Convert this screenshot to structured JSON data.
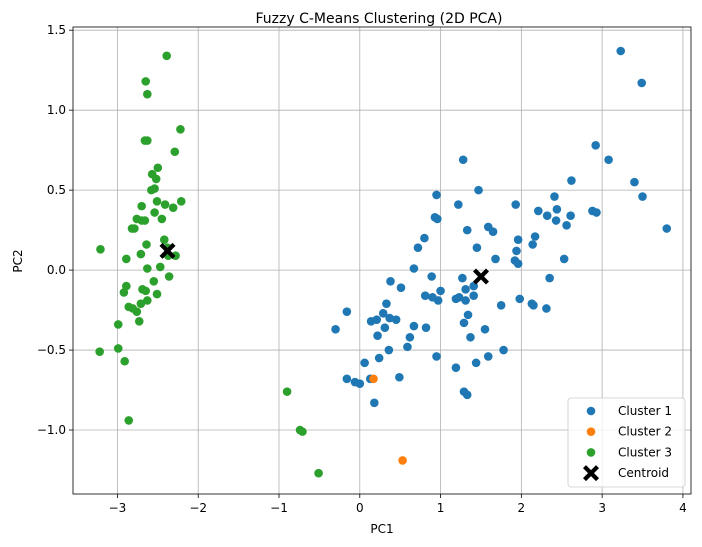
{
  "chart_data": {
    "type": "scatter",
    "title": "Fuzzy C-Means Clustering (2D PCA)",
    "xlabel": "PC1",
    "ylabel": "PC2",
    "xlim": [
      -3.55,
      4.1
    ],
    "ylim": [
      -1.4,
      1.52
    ],
    "x_ticks": [
      -3,
      -2,
      -1,
      0,
      1,
      2,
      3,
      4
    ],
    "x_tick_labels": [
      "−3",
      "−2",
      "−1",
      "0",
      "1",
      "2",
      "3",
      "4"
    ],
    "y_ticks": [
      -1.0,
      -0.5,
      0.0,
      0.5,
      1.0,
      1.5
    ],
    "y_tick_labels": [
      "−1.0",
      "−0.5",
      "0.0",
      "0.5",
      "1.0",
      "1.5"
    ],
    "grid": true,
    "legend_position": "bottom-right",
    "series": [
      {
        "name": "Cluster 1",
        "color": "#1f77b4",
        "marker": "circle",
        "points": [
          [
            3.23,
            1.37
          ],
          [
            3.49,
            1.17
          ],
          [
            3.8,
            0.26
          ],
          [
            3.5,
            0.46
          ],
          [
            3.4,
            0.55
          ],
          [
            3.08,
            0.69
          ],
          [
            2.92,
            0.78
          ],
          [
            2.62,
            0.56
          ],
          [
            2.88,
            0.37
          ],
          [
            2.93,
            0.36
          ],
          [
            2.61,
            0.34
          ],
          [
            2.56,
            0.28
          ],
          [
            2.43,
            0.31
          ],
          [
            2.44,
            0.38
          ],
          [
            2.41,
            0.46
          ],
          [
            2.32,
            0.34
          ],
          [
            2.21,
            0.37
          ],
          [
            2.17,
            0.21
          ],
          [
            2.14,
            0.16
          ],
          [
            2.53,
            0.07
          ],
          [
            2.35,
            -0.05
          ],
          [
            2.31,
            -0.24
          ],
          [
            2.15,
            -0.22
          ],
          [
            2.13,
            -0.21
          ],
          [
            1.98,
            -0.18
          ],
          [
            1.93,
            0.41
          ],
          [
            1.96,
            0.19
          ],
          [
            1.94,
            0.12
          ],
          [
            1.92,
            0.06
          ],
          [
            1.96,
            0.04
          ],
          [
            1.75,
            -0.22
          ],
          [
            1.78,
            -0.5
          ],
          [
            1.68,
            0.07
          ],
          [
            1.59,
            0.27
          ],
          [
            1.65,
            0.24
          ],
          [
            1.47,
            0.5
          ],
          [
            1.28,
            0.69
          ],
          [
            1.22,
            0.41
          ],
          [
            1.33,
            0.25
          ],
          [
            1.45,
            0.14
          ],
          [
            1.27,
            -0.05
          ],
          [
            1.41,
            -0.1
          ],
          [
            1.31,
            -0.12
          ],
          [
            1.23,
            -0.17
          ],
          [
            1.19,
            -0.18
          ],
          [
            1.31,
            -0.19
          ],
          [
            1.41,
            -0.16
          ],
          [
            1.34,
            -0.28
          ],
          [
            1.29,
            -0.33
          ],
          [
            1.55,
            -0.37
          ],
          [
            1.37,
            -0.42
          ],
          [
            1.59,
            -0.54
          ],
          [
            1.44,
            -0.58
          ],
          [
            1.19,
            -0.61
          ],
          [
            1.29,
            -0.76
          ],
          [
            1.33,
            -0.78
          ],
          [
            0.95,
            -0.54
          ],
          [
            0.82,
            -0.36
          ],
          [
            0.81,
            -0.16
          ],
          [
            0.89,
            -0.04
          ],
          [
            0.93,
            0.33
          ],
          [
            0.96,
            0.32
          ],
          [
            0.95,
            0.47
          ],
          [
            0.8,
            0.2
          ],
          [
            0.72,
            0.14
          ],
          [
            0.9,
            -0.17
          ],
          [
            1.0,
            -0.13
          ],
          [
            0.97,
            -0.19
          ],
          [
            0.67,
            0.01
          ],
          [
            0.51,
            -0.11
          ],
          [
            0.38,
            -0.07
          ],
          [
            0.33,
            -0.21
          ],
          [
            0.45,
            -0.31
          ],
          [
            0.37,
            -0.3
          ],
          [
            0.31,
            -0.36
          ],
          [
            0.29,
            -0.27
          ],
          [
            0.21,
            -0.31
          ],
          [
            0.14,
            -0.32
          ],
          [
            0.22,
            -0.41
          ],
          [
            0.24,
            -0.55
          ],
          [
            0.36,
            -0.5
          ],
          [
            0.59,
            -0.48
          ],
          [
            0.67,
            -0.35
          ],
          [
            0.62,
            -0.42
          ],
          [
            0.49,
            -0.67
          ],
          [
            0.18,
            -0.83
          ],
          [
            0.13,
            -0.68
          ],
          [
            0.06,
            -0.58
          ],
          [
            0.0,
            -0.71
          ],
          [
            -0.06,
            -0.7
          ],
          [
            -0.16,
            -0.68
          ],
          [
            -0.3,
            -0.37
          ],
          [
            -0.16,
            -0.26
          ]
        ]
      },
      {
        "name": "Cluster 2",
        "color": "#ff7f0e",
        "marker": "circle",
        "points": [
          [
            0.17,
            -0.68
          ],
          [
            0.53,
            -1.19
          ]
        ]
      },
      {
        "name": "Cluster 3",
        "color": "#2ca02c",
        "marker": "circle",
        "points": [
          [
            -2.39,
            1.34
          ],
          [
            -2.65,
            1.18
          ],
          [
            -2.63,
            1.1
          ],
          [
            -2.22,
            0.88
          ],
          [
            -2.66,
            0.81
          ],
          [
            -2.63,
            0.81
          ],
          [
            -2.29,
            0.74
          ],
          [
            -2.5,
            0.64
          ],
          [
            -2.57,
            0.6
          ],
          [
            -2.52,
            0.57
          ],
          [
            -2.58,
            0.5
          ],
          [
            -2.54,
            0.51
          ],
          [
            -2.7,
            0.4
          ],
          [
            -2.51,
            0.43
          ],
          [
            -2.41,
            0.41
          ],
          [
            -2.31,
            0.39
          ],
          [
            -2.21,
            0.43
          ],
          [
            -2.76,
            0.32
          ],
          [
            -2.7,
            0.31
          ],
          [
            -2.66,
            0.31
          ],
          [
            -2.54,
            0.36
          ],
          [
            -2.45,
            0.32
          ],
          [
            -2.82,
            0.26
          ],
          [
            -2.79,
            0.26
          ],
          [
            -2.64,
            0.16
          ],
          [
            -2.42,
            0.19
          ],
          [
            -2.38,
            0.14
          ],
          [
            -2.37,
            0.09
          ],
          [
            -2.28,
            0.09
          ],
          [
            -2.71,
            0.1
          ],
          [
            -2.47,
            0.02
          ],
          [
            -2.63,
            0.01
          ],
          [
            -3.21,
            0.13
          ],
          [
            -2.89,
            0.07
          ],
          [
            -2.36,
            -0.04
          ],
          [
            -2.55,
            -0.07
          ],
          [
            -2.69,
            -0.12
          ],
          [
            -2.65,
            -0.13
          ],
          [
            -2.89,
            -0.1
          ],
          [
            -2.92,
            -0.14
          ],
          [
            -2.51,
            -0.15
          ],
          [
            -2.63,
            -0.19
          ],
          [
            -2.71,
            -0.21
          ],
          [
            -2.86,
            -0.23
          ],
          [
            -2.81,
            -0.24
          ],
          [
            -2.76,
            -0.26
          ],
          [
            -2.73,
            -0.32
          ],
          [
            -2.99,
            -0.34
          ],
          [
            -3.22,
            -0.51
          ],
          [
            -2.99,
            -0.49
          ],
          [
            -2.91,
            -0.57
          ],
          [
            -2.86,
            -0.94
          ],
          [
            -0.9,
            -0.76
          ],
          [
            -0.74,
            -1.0
          ],
          [
            -0.71,
            -1.01
          ],
          [
            -0.51,
            -1.27
          ]
        ]
      }
    ],
    "centroids": {
      "name": "Centroid",
      "color": "#000000",
      "marker": "X",
      "points": [
        [
          -2.38,
          0.12
        ],
        [
          1.5,
          -0.04
        ]
      ]
    }
  }
}
